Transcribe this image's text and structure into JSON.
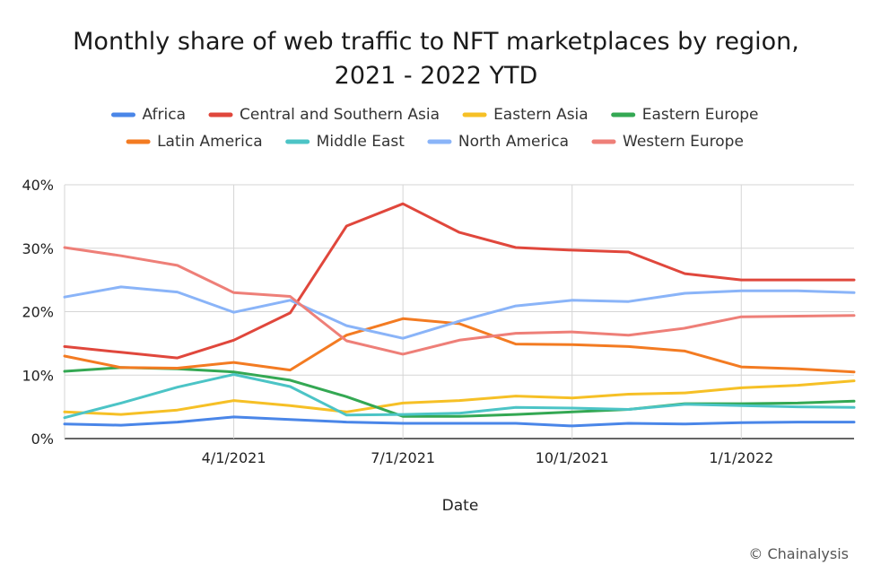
{
  "chart_data": {
    "type": "line",
    "title_line1": "Monthly share of web traffic to NFT marketplaces by region,",
    "title_line2": "2021 - 2022 YTD",
    "xlabel": "Date",
    "ylabel": "",
    "ylim": [
      0,
      40
    ],
    "yticks": [
      "0%",
      "10%",
      "20%",
      "30%",
      "40%"
    ],
    "yticks_values": [
      0,
      10,
      20,
      30,
      40
    ],
    "x": [
      "2021-01",
      "2021-02",
      "2021-03",
      "2021-04",
      "2021-05",
      "2021-06",
      "2021-07",
      "2021-08",
      "2021-09",
      "2021-10",
      "2021-11",
      "2021-12",
      "2022-01",
      "2022-02",
      "2022-03"
    ],
    "xticks": [
      {
        "label": "4/1/2021",
        "at": "2021-04"
      },
      {
        "label": "7/1/2021",
        "at": "2021-07"
      },
      {
        "label": "10/1/2021",
        "at": "2021-10"
      },
      {
        "label": "1/1/2022",
        "at": "2022-01"
      }
    ],
    "grid": true,
    "legend_placement": "top",
    "series": [
      {
        "name": "Africa",
        "color": "#4a86e8",
        "values": [
          2.3,
          2.1,
          2.6,
          3.4,
          3.0,
          2.6,
          2.4,
          2.4,
          2.4,
          2.0,
          2.4,
          2.3,
          2.5,
          2.6,
          2.6
        ]
      },
      {
        "name": "Central and Southern Asia",
        "color": "#e0473c",
        "values": [
          14.5,
          13.6,
          12.7,
          15.5,
          19.8,
          33.5,
          37.0,
          32.5,
          30.1,
          29.7,
          29.4,
          26.0,
          25.0,
          25.0,
          25.0
        ]
      },
      {
        "name": "Eastern Asia",
        "color": "#f6c026",
        "values": [
          4.2,
          3.8,
          4.5,
          6.0,
          5.2,
          4.2,
          5.6,
          6.0,
          6.7,
          6.4,
          7.0,
          7.2,
          8.0,
          8.4,
          9.1
        ]
      },
      {
        "name": "Eastern Europe",
        "color": "#34a853",
        "values": [
          10.6,
          11.2,
          11.0,
          10.5,
          9.2,
          6.6,
          3.5,
          3.5,
          3.8,
          4.2,
          4.6,
          5.5,
          5.5,
          5.6,
          5.9
        ]
      },
      {
        "name": "Latin America",
        "color": "#f37b22",
        "values": [
          13.0,
          11.2,
          11.1,
          12.0,
          10.8,
          16.3,
          18.9,
          18.1,
          14.9,
          14.8,
          14.5,
          13.8,
          11.3,
          11.0,
          10.5
        ]
      },
      {
        "name": "Middle East",
        "color": "#4cc4c6",
        "values": [
          3.3,
          5.6,
          8.1,
          10.1,
          8.2,
          3.7,
          3.8,
          4.0,
          4.9,
          4.8,
          4.6,
          5.4,
          5.2,
          5.0,
          4.9
        ]
      },
      {
        "name": "North America",
        "color": "#8ab4f8",
        "values": [
          22.3,
          23.9,
          23.1,
          19.9,
          21.8,
          17.8,
          15.8,
          18.5,
          20.9,
          21.8,
          21.6,
          22.9,
          23.3,
          23.3,
          23.0
        ]
      },
      {
        "name": "Western Europe",
        "color": "#ee7f78",
        "values": [
          30.1,
          28.8,
          27.3,
          23.0,
          22.4,
          15.4,
          13.3,
          15.5,
          16.6,
          16.8,
          16.3,
          17.4,
          19.2,
          19.3,
          19.4
        ]
      }
    ]
  },
  "credit": "© Chainalysis"
}
